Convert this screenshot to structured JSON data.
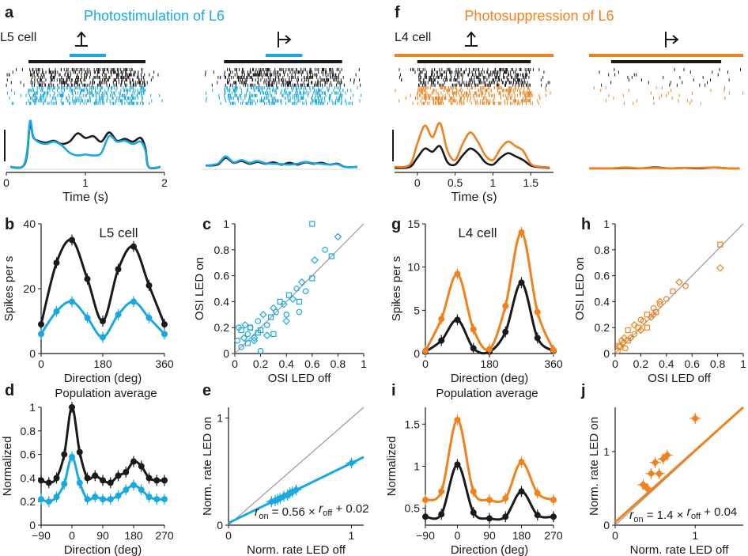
{
  "colors": {
    "black": "#1a1a1a",
    "cyan": "#19a9e0",
    "orange": "#f0821e",
    "gray": "#999999"
  },
  "chart_data": [
    {
      "id": "a",
      "type": "line",
      "panel_label": "a",
      "title": "Photostimulation of L6",
      "cell_label": "L5 cell",
      "xlabel": "Time (s)",
      "xlim": [
        0,
        2
      ],
      "xticks": [
        0,
        1,
        2
      ],
      "stim_bar": [
        0.28,
        1.76
      ],
      "led_bar": [
        0.8,
        1.26
      ],
      "series": [
        {
          "color": "black",
          "x": [
            0.05,
            0.2,
            0.26,
            0.3,
            0.34,
            0.4,
            0.5,
            0.6,
            0.7,
            0.8,
            0.9,
            1.0,
            1.1,
            1.2,
            1.3,
            1.4,
            1.5,
            1.6,
            1.7,
            1.76,
            1.8,
            1.95
          ],
          "y": [
            0.05,
            0.05,
            0.3,
            1.0,
            0.7,
            0.62,
            0.58,
            0.62,
            0.55,
            0.6,
            0.78,
            0.68,
            0.72,
            0.6,
            0.8,
            0.62,
            0.66,
            0.6,
            0.68,
            0.45,
            0.05,
            0.05
          ]
        },
        {
          "color": "cyan",
          "x": [
            0.05,
            0.2,
            0.26,
            0.3,
            0.34,
            0.4,
            0.5,
            0.6,
            0.7,
            0.8,
            0.9,
            1.0,
            1.1,
            1.2,
            1.3,
            1.4,
            1.5,
            1.6,
            1.7,
            1.76,
            1.8,
            1.95
          ],
          "y": [
            0.05,
            0.05,
            0.35,
            1.05,
            0.72,
            0.6,
            0.55,
            0.6,
            0.52,
            0.36,
            0.3,
            0.32,
            0.3,
            0.35,
            0.72,
            0.6,
            0.62,
            0.55,
            0.6,
            0.4,
            0.05,
            0.05
          ]
        }
      ]
    },
    {
      "id": "a2",
      "type": "line",
      "stim_bar": [
        0.28,
        1.76
      ],
      "led_bar": [
        0.8,
        1.26
      ],
      "series": [
        {
          "color": "black",
          "x": [
            0.05,
            0.2,
            0.3,
            0.4,
            0.5,
            0.6,
            0.7,
            0.8,
            0.9,
            1.0,
            1.1,
            1.2,
            1.3,
            1.4,
            1.5,
            1.6,
            1.7,
            1.8,
            1.95
          ],
          "y": [
            0.08,
            0.1,
            0.25,
            0.14,
            0.18,
            0.12,
            0.16,
            0.12,
            0.15,
            0.1,
            0.14,
            0.1,
            0.15,
            0.12,
            0.14,
            0.1,
            0.12,
            0.05,
            0.05
          ]
        },
        {
          "color": "cyan",
          "x": [
            0.05,
            0.2,
            0.3,
            0.4,
            0.5,
            0.6,
            0.7,
            0.8,
            0.9,
            1.0,
            1.1,
            1.2,
            1.3,
            1.4,
            1.5,
            1.6,
            1.7,
            1.8,
            1.95
          ],
          "y": [
            0.08,
            0.12,
            0.28,
            0.15,
            0.2,
            0.14,
            0.18,
            0.13,
            0.12,
            0.11,
            0.1,
            0.12,
            0.16,
            0.13,
            0.12,
            0.1,
            0.11,
            0.05,
            0.05
          ]
        }
      ]
    },
    {
      "id": "f",
      "type": "line",
      "panel_label": "f",
      "title": "Photosuppression of L6",
      "cell_label": "L4 cell",
      "xlabel": "Time (s)",
      "xlim": [
        -0.3,
        1.8
      ],
      "xticks": [
        0,
        0.5,
        1,
        1.5
      ],
      "stim_bar": [
        0,
        1.5
      ],
      "led_bar": [
        -0.3,
        1.8
      ],
      "series": [
        {
          "color": "black",
          "x": [
            -0.3,
            -0.1,
            0,
            0.1,
            0.2,
            0.3,
            0.4,
            0.5,
            0.6,
            0.7,
            0.8,
            0.9,
            1.0,
            1.1,
            1.2,
            1.3,
            1.4,
            1.5,
            1.6,
            1.75
          ],
          "y": [
            0.03,
            0.05,
            0.25,
            0.45,
            0.38,
            0.5,
            0.15,
            0.1,
            0.3,
            0.45,
            0.35,
            0.15,
            0.1,
            0.25,
            0.35,
            0.28,
            0.2,
            0.08,
            0.05,
            0.03
          ]
        },
        {
          "color": "orange",
          "x": [
            -0.3,
            -0.1,
            0,
            0.1,
            0.2,
            0.3,
            0.4,
            0.5,
            0.6,
            0.7,
            0.8,
            0.9,
            1.0,
            1.1,
            1.2,
            1.3,
            1.4,
            1.5,
            1.6,
            1.75
          ],
          "y": [
            0.05,
            0.1,
            0.55,
            0.95,
            0.7,
            1.0,
            0.4,
            0.2,
            0.55,
            0.8,
            0.6,
            0.3,
            0.2,
            0.45,
            0.6,
            0.5,
            0.4,
            0.12,
            0.06,
            0.04
          ]
        }
      ]
    },
    {
      "id": "f2",
      "type": "line",
      "stim_bar": [
        0,
        1.5
      ],
      "led_bar": [
        -0.3,
        1.8
      ],
      "series": [
        {
          "color": "black",
          "x": [
            -0.3,
            0,
            0.2,
            0.4,
            0.6,
            0.8,
            1.0,
            1.2,
            1.4,
            1.6,
            1.75
          ],
          "y": [
            0.02,
            0.02,
            0.03,
            0.02,
            0.04,
            0.02,
            0.03,
            0.02,
            0.04,
            0.02,
            0.02
          ]
        },
        {
          "color": "orange",
          "x": [
            -0.3,
            0,
            0.2,
            0.4,
            0.6,
            0.8,
            1.0,
            1.2,
            1.4,
            1.6,
            1.75
          ],
          "y": [
            0.02,
            0.02,
            0.04,
            0.02,
            0.03,
            0.02,
            0.03,
            0.03,
            0.04,
            0.02,
            0.02
          ]
        }
      ]
    },
    {
      "id": "b",
      "type": "line",
      "panel_label": "b",
      "title": "L5 cell",
      "xlabel": "Direction (deg)",
      "ylabel": "Spikes per s",
      "xlim": [
        0,
        360
      ],
      "ylim": [
        0,
        40
      ],
      "xticks": [
        0,
        180,
        360
      ],
      "yticks": [
        0,
        20,
        40
      ],
      "series": [
        {
          "color": "black",
          "x": [
            0,
            45,
            90,
            135,
            180,
            225,
            270,
            315,
            360
          ],
          "y": [
            9,
            28,
            35,
            23,
            10,
            26,
            33,
            21,
            9
          ]
        },
        {
          "color": "cyan",
          "x": [
            0,
            45,
            90,
            135,
            180,
            225,
            270,
            315,
            360
          ],
          "y": [
            6,
            13,
            16,
            11,
            5,
            12,
            16,
            11,
            6
          ]
        }
      ]
    },
    {
      "id": "c",
      "type": "scatter",
      "panel_label": "c",
      "xlabel": "OSI LED off",
      "ylabel": "OSI LED on",
      "xlim": [
        0,
        1
      ],
      "ylim": [
        0,
        1
      ],
      "xticks": [
        0,
        0.2,
        0.4,
        0.6,
        0.8,
        1
      ],
      "yticks": [
        0,
        0.2,
        0.4,
        0.6,
        0.8,
        1
      ],
      "identity_line": true,
      "series": [
        {
          "color": "cyan",
          "x": [
            0.02,
            0.05,
            0.08,
            0.1,
            0.12,
            0.15,
            0.18,
            0.2,
            0.22,
            0.25,
            0.28,
            0.3,
            0.32,
            0.35,
            0.38,
            0.4,
            0.42,
            0.45,
            0.48,
            0.5,
            0.52,
            0.55,
            0.6,
            0.62,
            0.7,
            0.75,
            0.8,
            0.05,
            0.1,
            0.15,
            0.2,
            0.3,
            0.4,
            0.5,
            0.6,
            0.07,
            0.12,
            0.18,
            0.25,
            0.03
          ],
          "y": [
            0.1,
            0.18,
            0.22,
            0.15,
            0.2,
            0.12,
            0.25,
            0.18,
            0.3,
            0.22,
            0.28,
            0.35,
            0.32,
            0.4,
            0.38,
            0.3,
            0.45,
            0.42,
            0.5,
            0.4,
            0.55,
            0.48,
            1.0,
            0.72,
            0.8,
            0.75,
            0.9,
            0.05,
            0.08,
            0.1,
            0.02,
            0.15,
            0.25,
            0.32,
            0.58,
            0.12,
            0.2,
            0.16,
            0.14,
            0.2
          ]
        }
      ]
    },
    {
      "id": "g",
      "type": "line",
      "panel_label": "g",
      "title": "L4 cell",
      "xlabel": "Direction (deg)",
      "ylabel": "Spikes per s",
      "xlim": [
        0,
        360
      ],
      "ylim": [
        0,
        15
      ],
      "xticks": [
        0,
        180,
        360
      ],
      "yticks": [
        0,
        5,
        10,
        15
      ],
      "series": [
        {
          "color": "black",
          "x": [
            0,
            45,
            90,
            135,
            180,
            225,
            270,
            315,
            360
          ],
          "y": [
            0.2,
            1.5,
            3.9,
            0.6,
            0.2,
            2.5,
            8.2,
            1.8,
            0.3
          ]
        },
        {
          "color": "orange",
          "x": [
            0,
            45,
            90,
            135,
            180,
            225,
            270,
            315,
            360
          ],
          "y": [
            0.3,
            4,
            9.2,
            2.8,
            0.5,
            5.5,
            14,
            4.8,
            0.4
          ]
        }
      ]
    },
    {
      "id": "h",
      "type": "scatter",
      "panel_label": "h",
      "xlabel": "OSI LED off",
      "ylabel": "OSI LED on",
      "xlim": [
        0,
        1
      ],
      "ylim": [
        0,
        1
      ],
      "xticks": [
        0,
        0.2,
        0.4,
        0.6,
        0.8,
        1
      ],
      "yticks": [
        0,
        0.2,
        0.4,
        0.6,
        0.8,
        1
      ],
      "identity_line": true,
      "series": [
        {
          "color": "orange",
          "x": [
            0.02,
            0.04,
            0.06,
            0.08,
            0.1,
            0.12,
            0.15,
            0.18,
            0.2,
            0.22,
            0.25,
            0.28,
            0.3,
            0.32,
            0.35,
            0.4,
            0.45,
            0.5,
            0.55,
            0.82,
            0.82,
            0.05,
            0.1,
            0.15,
            0.2,
            0.25,
            0.3,
            0.35,
            0.03,
            0.07
          ],
          "y": [
            0.02,
            0.05,
            0.08,
            0.04,
            0.1,
            0.12,
            0.15,
            0.2,
            0.18,
            0.25,
            0.3,
            0.28,
            0.35,
            0.32,
            0.4,
            0.42,
            0.48,
            0.55,
            0.52,
            0.84,
            0.66,
            0.1,
            0.18,
            0.22,
            0.26,
            0.2,
            0.3,
            0.38,
            0.06,
            0.12
          ]
        }
      ]
    },
    {
      "id": "d",
      "type": "line",
      "panel_label": "d",
      "title": "Population average",
      "xlabel": "Direction (deg)",
      "ylabel": "Normalized",
      "xlim": [
        -90,
        270
      ],
      "ylim": [
        0,
        1
      ],
      "xticks": [
        -90,
        0,
        90,
        180,
        270
      ],
      "yticks": [
        0,
        0.2,
        0.4,
        0.6,
        0.8,
        1
      ],
      "series": [
        {
          "color": "black",
          "x": [
            -90,
            -67.5,
            -45,
            -22.5,
            0,
            22.5,
            45,
            67.5,
            90,
            112.5,
            135,
            157.5,
            180,
            202.5,
            225,
            247.5,
            270
          ],
          "y": [
            0.38,
            0.36,
            0.4,
            0.6,
            1.0,
            0.62,
            0.4,
            0.42,
            0.38,
            0.36,
            0.42,
            0.45,
            0.54,
            0.5,
            0.4,
            0.38,
            0.38
          ]
        },
        {
          "color": "cyan",
          "x": [
            -90,
            -67.5,
            -45,
            -22.5,
            0,
            22.5,
            45,
            67.5,
            90,
            112.5,
            135,
            157.5,
            180,
            202.5,
            225,
            247.5,
            270
          ],
          "y": [
            0.22,
            0.2,
            0.24,
            0.35,
            0.58,
            0.36,
            0.22,
            0.24,
            0.22,
            0.22,
            0.25,
            0.3,
            0.34,
            0.3,
            0.24,
            0.22,
            0.22
          ]
        }
      ]
    },
    {
      "id": "e",
      "type": "scatter",
      "panel_label": "e",
      "xlabel": "Norm. rate LED off",
      "ylabel": "Norm. rate LED on",
      "xlim": [
        0,
        1.1
      ],
      "ylim": [
        0,
        1.1
      ],
      "xticks": [
        0,
        1
      ],
      "yticks": [
        0,
        1
      ],
      "identity_line": true,
      "fit": {
        "slope": 0.56,
        "intercept": 0.02,
        "color": "cyan"
      },
      "fit_label": {
        "lhs": "r",
        "lhs_sub": "on",
        "mid": " = 0.56 × ",
        "rhs": "r",
        "rhs_sub": "off",
        "tail": " + 0.02"
      },
      "series": [
        {
          "color": "cyan",
          "x": [
            0.35,
            0.38,
            0.4,
            0.42,
            0.45,
            0.48,
            0.5,
            0.52,
            0.55,
            1.0
          ],
          "y": [
            0.22,
            0.23,
            0.24,
            0.25,
            0.27,
            0.28,
            0.3,
            0.31,
            0.33,
            0.58
          ]
        }
      ]
    },
    {
      "id": "i",
      "type": "line",
      "panel_label": "i",
      "title": "Population average",
      "xlabel": "Direction (deg)",
      "ylabel": "Normalized",
      "xlim": [
        -90,
        270
      ],
      "ylim": [
        0.3,
        1.7
      ],
      "xticks": [
        -90,
        0,
        90,
        180,
        270
      ],
      "yticks": [
        0.5,
        1,
        1.5
      ],
      "series": [
        {
          "color": "black",
          "x": [
            -90,
            -45,
            0,
            45,
            90,
            135,
            180,
            225,
            270
          ],
          "y": [
            0.4,
            0.43,
            1.02,
            0.45,
            0.38,
            0.4,
            0.7,
            0.42,
            0.4
          ]
        },
        {
          "color": "orange",
          "x": [
            -90,
            -45,
            0,
            45,
            90,
            135,
            180,
            225,
            270
          ],
          "y": [
            0.6,
            0.7,
            1.55,
            0.7,
            0.6,
            0.62,
            1.05,
            0.68,
            0.6
          ]
        }
      ]
    },
    {
      "id": "j",
      "type": "scatter",
      "panel_label": "j",
      "xlabel": "Norm. rate LED off",
      "ylabel": "Norm. rate LED on",
      "xlim": [
        0,
        1.6
      ],
      "ylim": [
        0,
        1.6
      ],
      "xticks": [
        0,
        1
      ],
      "yticks": [
        0,
        1
      ],
      "identity_line": true,
      "fit": {
        "slope": 1.4,
        "intercept": 0.04,
        "color": "orange"
      },
      "fit_label": {
        "lhs": "r",
        "lhs_sub": "on",
        "mid": " = 1.4 × ",
        "rhs": "r",
        "rhs_sub": "off",
        "tail": " + 0.04"
      },
      "series": [
        {
          "color": "orange",
          "x": [
            0.35,
            0.4,
            0.45,
            0.5,
            0.55,
            0.6,
            0.65,
            1.0
          ],
          "y": [
            0.55,
            0.5,
            0.7,
            0.85,
            0.7,
            0.9,
            0.95,
            1.45
          ]
        }
      ]
    }
  ]
}
